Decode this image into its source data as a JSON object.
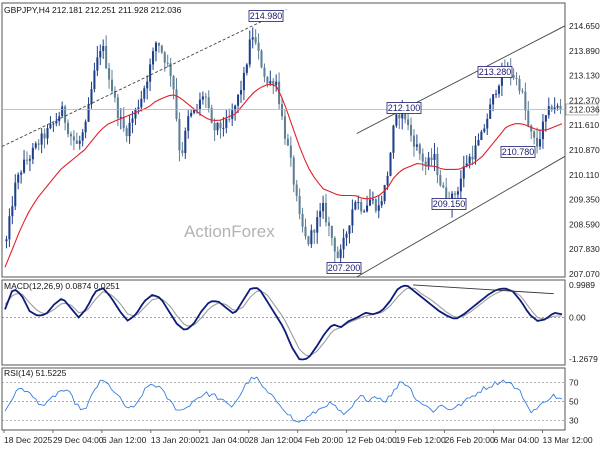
{
  "chart_data": [
    {
      "panel": "price",
      "type": "candlestick",
      "header": "GBPJPY,H4  212.181 212.251 211.928 212.036",
      "watermark": "ActionForex",
      "last_price": "212.036",
      "ylim": [
        206.9,
        215.3
      ],
      "yticks": [
        "214.650",
        "213.890",
        "213.130",
        "212.370",
        "211.610",
        "210.870",
        "210.110",
        "209.350",
        "208.590",
        "207.830",
        "207.070"
      ],
      "xticks": [
        "18 Dec 2025",
        "29 Dec 04:00",
        "6 Jan 12:00",
        "13 Jan 20:00",
        "21 Jan 04:00",
        "28 Jan 12:00",
        "4 Feb 20:00",
        "12 Feb 04:00",
        "19 Feb 12:00",
        "26 Feb 20:00",
        "6 Mar 04:00",
        "13 Mar 12:00"
      ],
      "callouts": [
        "214.980",
        "213.280",
        "212.100",
        "210.780",
        "209.150",
        "207.200"
      ],
      "close_path": [
        208.0,
        209.6,
        210.3,
        210.6,
        211.0,
        211.3,
        211.6,
        212.0,
        211.3,
        210.9,
        211.5,
        213.0,
        214.1,
        213.0,
        212.0,
        211.3,
        211.8,
        212.4,
        213.2,
        214.2,
        213.6,
        213.0,
        210.5,
        211.8,
        212.0,
        212.6,
        211.4,
        211.5,
        211.6,
        212.2,
        213.0,
        214.4,
        213.6,
        212.8,
        213.0,
        211.5,
        210.3,
        208.7,
        207.9,
        208.5,
        209.0,
        208.2,
        207.4,
        208.3,
        209.3,
        209.0,
        209.3,
        209.0,
        209.8,
        211.6,
        212.1,
        211.3,
        210.8,
        210.3,
        210.6,
        209.6,
        209.2,
        209.6,
        210.4,
        210.7,
        211.2,
        212.0,
        212.8,
        213.3,
        213.1,
        212.7,
        211.4,
        210.9,
        211.7,
        212.2,
        212.0
      ],
      "ma": [
        207.2,
        207.8,
        208.4,
        208.9,
        209.3,
        209.6,
        209.9,
        210.2,
        210.4,
        210.6,
        210.8,
        211.1,
        211.4,
        211.6,
        211.7,
        211.8,
        211.9,
        212.0,
        212.1,
        212.3,
        212.4,
        212.5,
        212.4,
        212.2,
        212.0,
        211.8,
        211.7,
        211.7,
        211.8,
        211.9,
        212.2,
        212.5,
        212.7,
        212.8,
        212.8,
        212.3,
        211.6,
        210.9,
        210.3,
        209.9,
        209.6,
        209.5,
        209.4,
        209.4,
        209.4,
        209.3,
        209.3,
        209.4,
        209.6,
        210.0,
        210.2,
        210.3,
        210.4,
        210.3,
        210.3,
        210.2,
        210.2,
        210.2,
        210.3,
        210.4,
        210.6,
        210.9,
        211.2,
        211.5,
        211.6,
        211.6,
        211.5,
        211.4,
        211.4,
        211.5,
        211.6
      ],
      "trendlines": [
        {
          "style": "dashed",
          "from": [
            0,
            210.9
          ],
          "to": [
            0.505,
            215.1
          ]
        },
        {
          "style": "solid",
          "from": [
            0.63,
            211.3
          ],
          "to": [
            1.0,
            214.6
          ]
        },
        {
          "style": "solid",
          "from": [
            0.63,
            206.9
          ],
          "to": [
            1.0,
            210.6
          ]
        }
      ],
      "colors": {
        "bull": "#1e3f8a",
        "bear": "#5f7f94",
        "ma": "#e0212a",
        "last_line": "#b0b0b0",
        "trend": "#444444"
      }
    },
    {
      "panel": "macd",
      "type": "line",
      "header": "MACD(12,26,9) 0.0874 0.0251",
      "ylim": [
        -1.45,
        1.15
      ],
      "yticks": [
        "0.9989",
        "0.00",
        "-1.2679"
      ],
      "macd": [
        0.25,
        0.9,
        0.7,
        0.2,
        0.05,
        0.1,
        0.4,
        0.6,
        0.3,
        0.0,
        0.3,
        0.8,
        0.9,
        0.6,
        0.2,
        -0.1,
        0.1,
        0.5,
        0.7,
        0.6,
        0.2,
        -0.2,
        -0.4,
        -0.2,
        0.2,
        0.5,
        0.5,
        0.3,
        0.1,
        0.5,
        0.9,
        0.9,
        0.5,
        0.1,
        -0.3,
        -0.9,
        -1.3,
        -1.25,
        -0.9,
        -0.5,
        -0.2,
        -0.3,
        -0.1,
        0.0,
        0.15,
        0.1,
        0.2,
        0.5,
        0.9,
        1.0,
        0.8,
        0.6,
        0.4,
        0.2,
        0.05,
        -0.05,
        0.1,
        0.3,
        0.5,
        0.7,
        0.85,
        0.9,
        0.8,
        0.5,
        0.1,
        -0.1,
        -0.05,
        0.15,
        0.1
      ],
      "signal": [
        0.4,
        0.7,
        0.75,
        0.45,
        0.2,
        0.1,
        0.25,
        0.45,
        0.4,
        0.15,
        0.2,
        0.55,
        0.8,
        0.7,
        0.45,
        0.1,
        0.05,
        0.3,
        0.55,
        0.6,
        0.4,
        0.05,
        -0.25,
        -0.25,
        0.0,
        0.3,
        0.45,
        0.4,
        0.2,
        0.3,
        0.65,
        0.85,
        0.7,
        0.35,
        0.0,
        -0.5,
        -1.0,
        -1.2,
        -1.05,
        -0.75,
        -0.4,
        -0.3,
        -0.15,
        -0.05,
        0.05,
        0.1,
        0.15,
        0.35,
        0.65,
        0.9,
        0.9,
        0.7,
        0.55,
        0.35,
        0.15,
        0.0,
        0.05,
        0.2,
        0.4,
        0.6,
        0.75,
        0.85,
        0.82,
        0.65,
        0.3,
        0.0,
        -0.05,
        0.05,
        0.05
      ],
      "trendline": {
        "from": [
          0.73,
          1.0
        ],
        "to": [
          0.98,
          0.73
        ]
      },
      "colors": {
        "macd": "#0d1b7a",
        "signal": "#9e9e9e",
        "zero": "#808080"
      }
    },
    {
      "panel": "rsi",
      "type": "line",
      "header": "RSI(14) 51.5225",
      "ylim": [
        20,
        85
      ],
      "yticks": [
        "70",
        "50",
        "30"
      ],
      "values": [
        40,
        55,
        65,
        58,
        50,
        45,
        55,
        62,
        58,
        45,
        40,
        62,
        72,
        66,
        55,
        44,
        42,
        58,
        68,
        66,
        55,
        44,
        40,
        48,
        55,
        58,
        56,
        50,
        44,
        55,
        70,
        76,
        64,
        55,
        48,
        38,
        28,
        30,
        36,
        42,
        48,
        44,
        34,
        44,
        55,
        52,
        56,
        50,
        58,
        72,
        66,
        52,
        46,
        40,
        46,
        42,
        44,
        50,
        56,
        62,
        66,
        70,
        72,
        66,
        58,
        40,
        42,
        52,
        56,
        51.5
      ],
      "colors": {
        "line": "#3a7fe0",
        "ref": "#888888"
      }
    }
  ]
}
